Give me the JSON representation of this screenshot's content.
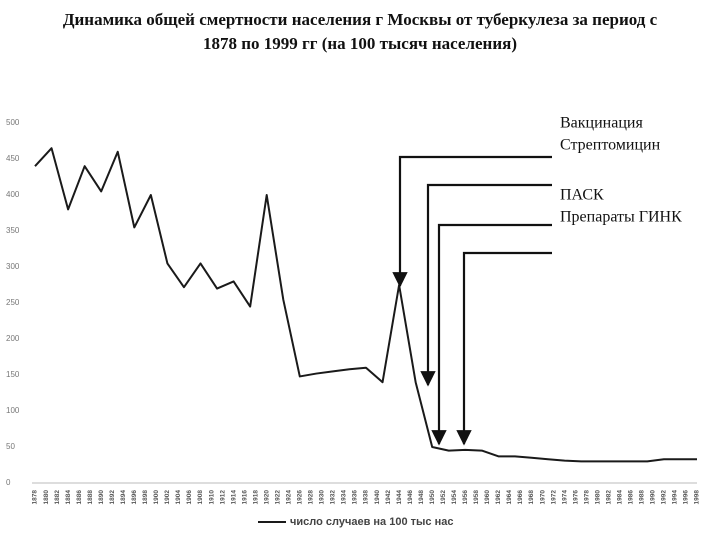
{
  "chart_data": {
    "type": "line",
    "title": "Динамика общей смертности населения г Москвы от туберкулеза за период с 1878 по 1999 гг (на 100 тысяч населения)",
    "x": [
      1878,
      1881,
      1884,
      1887,
      1890,
      1893,
      1896,
      1899,
      1902,
      1905,
      1908,
      1911,
      1914,
      1917,
      1920,
      1923,
      1926,
      1929,
      1932,
      1935,
      1938,
      1941,
      1944,
      1947,
      1950,
      1953,
      1956,
      1959,
      1962,
      1965,
      1968,
      1971,
      1974,
      1977,
      1980,
      1983,
      1986,
      1989,
      1992,
      1995,
      1998
    ],
    "series": [
      {
        "name": "число случаев на 100 тыс нас",
        "color": "#1a1a1a",
        "values": [
          440,
          465,
          380,
          440,
          405,
          460,
          355,
          400,
          305,
          272,
          305,
          270,
          280,
          245,
          400,
          255,
          148,
          152,
          155,
          158,
          160,
          140,
          275,
          140,
          50,
          45,
          46,
          45,
          37,
          37,
          35,
          33,
          31,
          30,
          30,
          30,
          30,
          30,
          33,
          33,
          33
        ]
      }
    ],
    "xlim": [
      1878,
      1998
    ],
    "xticks": [
      1878,
      1880,
      1882,
      1884,
      1886,
      1888,
      1890,
      1892,
      1894,
      1896,
      1898,
      1900,
      1902,
      1904,
      1906,
      1908,
      1910,
      1912,
      1914,
      1916,
      1918,
      1920,
      1922,
      1924,
      1926,
      1928,
      1930,
      1932,
      1934,
      1936,
      1938,
      1940,
      1942,
      1944,
      1946,
      1948,
      1950,
      1952,
      1954,
      1956,
      1958,
      1960,
      1962,
      1964,
      1966,
      1968,
      1970,
      1972,
      1974,
      1976,
      1978,
      1980,
      1982,
      1984,
      1986,
      1988,
      1990,
      1992,
      1994,
      1996,
      1998
    ],
    "ylim": [
      0,
      500
    ],
    "yticks": [
      0,
      50,
      100,
      150,
      200,
      250,
      300,
      350,
      400,
      450,
      500
    ],
    "grid": false,
    "annotations": [
      "Вакцинация",
      "Стрептомицин",
      "ПАСК",
      "Препараты ГИНК"
    ]
  }
}
